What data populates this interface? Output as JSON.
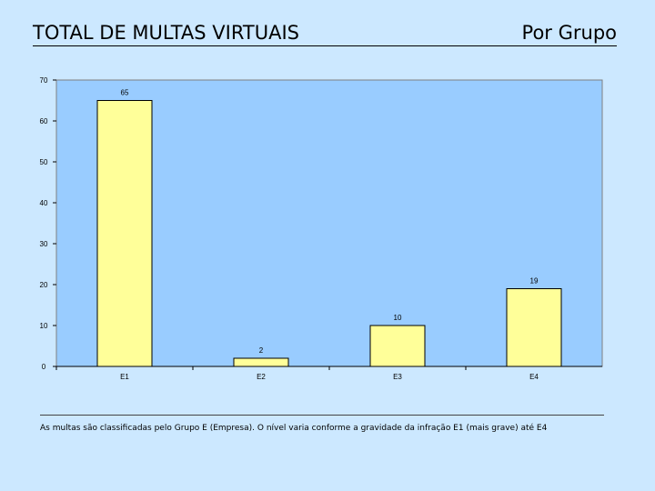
{
  "header": {
    "title": "TOTAL DE MULTAS VIRTUAIS",
    "subtitle": "Por Grupo"
  },
  "footnote": "As multas são classificadas pelo Grupo E (Empresa). O nível varia conforme a gravidade da infração E1 (mais grave) até E4",
  "colors": {
    "page_background": "#cce8ff",
    "plot_background": "#99ccff",
    "bar_fill": "#ffff99",
    "bar_stroke": "#000000"
  },
  "chart_data": {
    "type": "bar",
    "title": "",
    "xlabel": "",
    "ylabel": "",
    "categories": [
      "E1",
      "E2",
      "E3",
      "E4"
    ],
    "values": [
      65,
      2,
      10,
      19
    ],
    "data_labels": [
      "65",
      "2",
      "10",
      "19"
    ],
    "ylim": [
      0,
      70
    ],
    "yticks": [
      0,
      10,
      20,
      30,
      40,
      50,
      60,
      70
    ],
    "grid": false,
    "legend": "none"
  }
}
